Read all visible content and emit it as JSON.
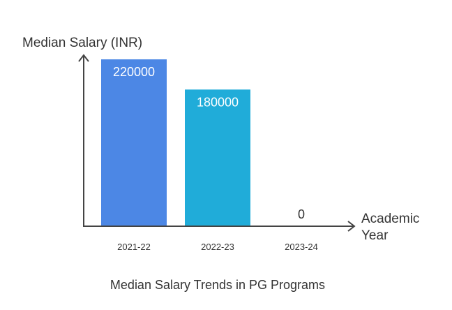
{
  "chart_data": {
    "type": "bar",
    "title": "Median Salary Trends in PG Programs",
    "ylabel": "Median Salary (INR)",
    "xlabel_line1": "Academic",
    "xlabel_line2": "Year",
    "categories": [
      "2021-22",
      "2022-23",
      "2023-24"
    ],
    "values": [
      220000,
      180000,
      0
    ],
    "colors": [
      "#4C87E5",
      "#20ACD9",
      "#20ACD9"
    ],
    "ylim": [
      0,
      220000
    ],
    "grid": false
  }
}
